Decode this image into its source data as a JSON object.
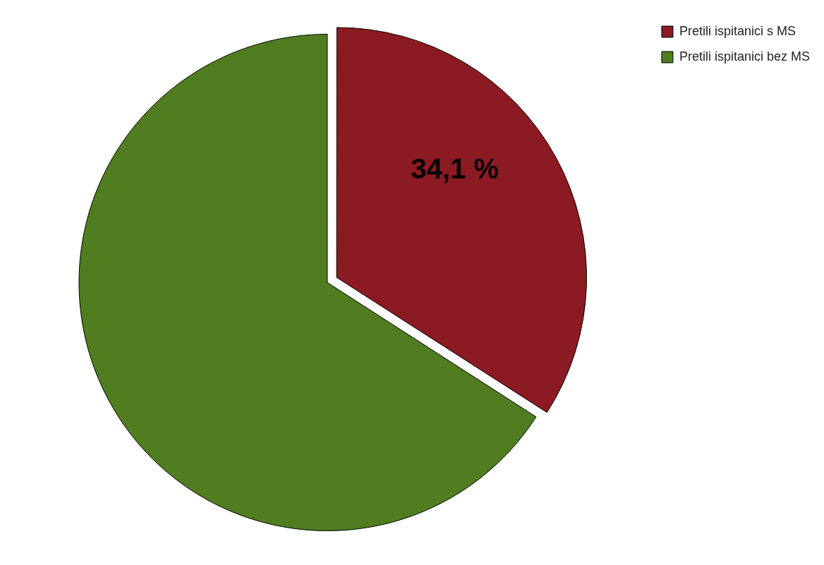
{
  "chart_data": {
    "type": "pie",
    "categories": [
      "Pretili ispitanici s MS",
      "Pretili ispitanici bez MS"
    ],
    "values": [
      34.1,
      65.9
    ],
    "colors": [
      "#8b1a22",
      "#4f7d1f"
    ],
    "value_labels": [
      "34,1 %",
      null
    ],
    "legend": "top right"
  }
}
